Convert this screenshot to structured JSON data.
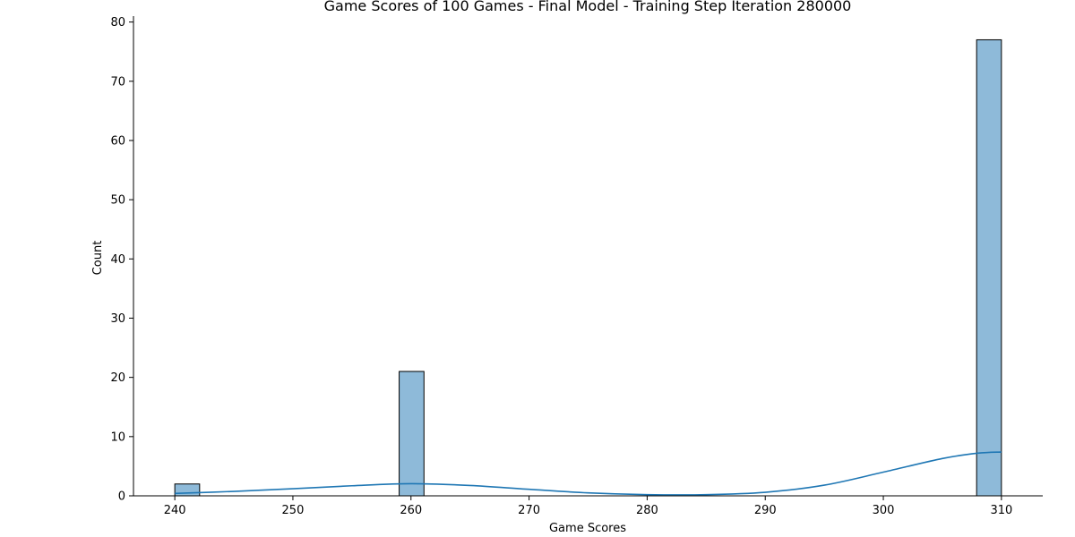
{
  "chart_data": {
    "type": "histogram",
    "title": "Game Scores of 100 Games - Final Model - Training Step Iteration 280000",
    "xlabel": "Game Scores",
    "ylabel": "Count",
    "xlim": [
      236.5,
      313.5
    ],
    "ylim": [
      0,
      81
    ],
    "xticks": [
      240,
      250,
      260,
      270,
      280,
      290,
      300,
      310
    ],
    "yticks": [
      0,
      10,
      20,
      30,
      40,
      50,
      60,
      70,
      80
    ],
    "bin_width": 2.1,
    "bins": [
      {
        "x0": 240.0,
        "x1": 242.1,
        "count": 2
      },
      {
        "x0": 259.0,
        "x1": 261.1,
        "count": 21
      },
      {
        "x0": 307.9,
        "x1": 310.0,
        "count": 77
      }
    ],
    "kde": {
      "x": [
        240,
        245,
        250,
        255,
        260,
        265,
        270,
        275,
        280,
        285,
        290,
        295,
        300,
        305,
        308,
        310
      ],
      "y": [
        0.4,
        0.75,
        1.2,
        1.7,
        2.05,
        1.75,
        1.1,
        0.5,
        0.2,
        0.2,
        0.6,
        1.8,
        4.0,
        6.3,
        7.2,
        7.4
      ]
    },
    "colors": {
      "bar_fill": "#8ebad9",
      "bar_edge": "#000000",
      "kde_line": "#1f77b4",
      "axis": "#000000"
    },
    "grid": false
  }
}
